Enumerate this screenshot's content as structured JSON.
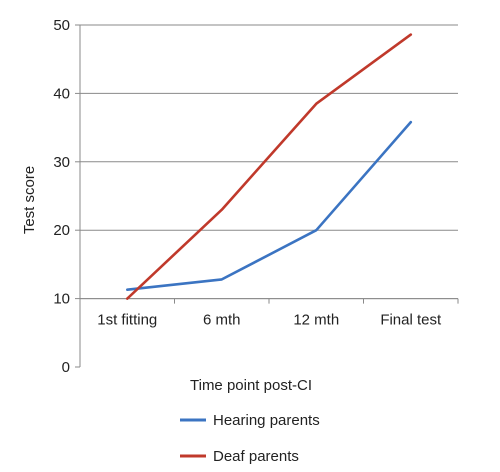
{
  "chart_data": {
    "type": "line",
    "title": "",
    "xlabel": "Time point post-CI",
    "ylabel": "Test score",
    "categories": [
      "1st fitting",
      "6 mth",
      "12 mth",
      "Final test"
    ],
    "yticks": [
      0,
      10,
      20,
      30,
      40,
      50
    ],
    "ylim": [
      0,
      50
    ],
    "grid": true,
    "legend_position": "bottom",
    "series": [
      {
        "name": "Hearing parents",
        "color": "#3b74c2",
        "points": [
          {
            "x": 0.0,
            "y": 11.3
          },
          {
            "x": 1.0,
            "y": 12.8
          },
          {
            "x": 2.0,
            "y": 20.0
          },
          {
            "x": 3.0,
            "y": 35.8
          }
        ]
      },
      {
        "name": "Deaf parents",
        "color": "#c0392b",
        "points": [
          {
            "x": 0.0,
            "y": 10.0
          },
          {
            "x": 1.0,
            "y": 23.0
          },
          {
            "x": 2.0,
            "y": 38.5
          },
          {
            "x": 3.0,
            "y": 48.6
          }
        ]
      }
    ]
  }
}
